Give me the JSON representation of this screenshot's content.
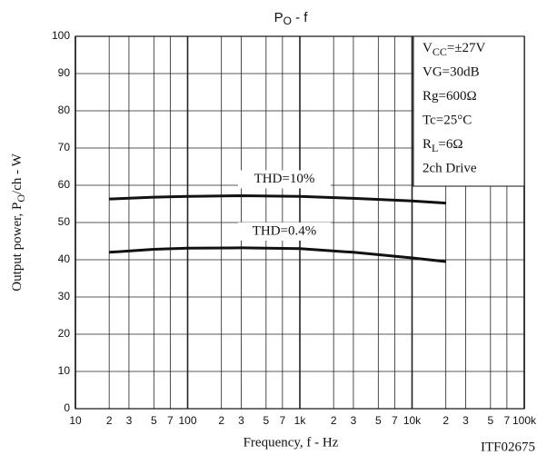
{
  "chart_data": {
    "type": "line",
    "title": {
      "text": "P",
      "sub": "O",
      "rest": " - f"
    },
    "x_label": "Frequency, f - Hz",
    "y_label": {
      "text": "Output power, P",
      "sub": "O",
      "rest": "/ch - W"
    },
    "code": "ITF02675",
    "log_x": true,
    "grid": true,
    "xlim": [
      10,
      100000
    ],
    "ylim": [
      0,
      100
    ],
    "yticks": [
      0,
      10,
      20,
      30,
      40,
      50,
      60,
      70,
      80,
      90,
      100
    ],
    "xticks": [
      10,
      {
        "value": 20,
        "label": "2"
      },
      {
        "value": 30,
        "label": "3"
      },
      {
        "value": 50,
        "label": "5"
      },
      {
        "value": 70,
        "label": "7"
      },
      100,
      {
        "value": 200,
        "label": "2"
      },
      {
        "value": 300,
        "label": "3"
      },
      {
        "value": 500,
        "label": "5"
      },
      {
        "value": 700,
        "label": "7"
      },
      {
        "value": 1000,
        "label": "1k"
      },
      {
        "value": 2000,
        "label": "2"
      },
      {
        "value": 3000,
        "label": "3"
      },
      {
        "value": 5000,
        "label": "5"
      },
      {
        "value": 7000,
        "label": "7"
      },
      {
        "value": 10000,
        "label": "10k"
      },
      {
        "value": 20000,
        "label": "2"
      },
      {
        "value": 30000,
        "label": "3"
      },
      {
        "value": 50000,
        "label": "5"
      },
      {
        "value": 70000,
        "label": "7"
      },
      {
        "value": 100000,
        "label": "100k"
      }
    ],
    "x": [
      20,
      50,
      100,
      300,
      1000,
      3000,
      10000,
      20000
    ],
    "series": [
      {
        "name": "THD=10%",
        "color": "#111111",
        "values": [
          56.3,
          56.8,
          57,
          57.2,
          57,
          56.5,
          55.8,
          55.2
        ]
      },
      {
        "name": "THD=0.4%",
        "color": "#111111",
        "values": [
          42,
          42.8,
          43.1,
          43.2,
          43,
          42,
          40.5,
          39.5
        ]
      }
    ],
    "conditions": [
      {
        "text": "V",
        "sub": "CC",
        "rest": "=±27V"
      },
      {
        "text": "VG=30dB"
      },
      {
        "text": "Rg=600Ω"
      },
      {
        "text": "Tc=25°C"
      },
      {
        "text": "R",
        "sub": "L",
        "rest": "=6Ω"
      },
      {
        "text": "2ch Drive"
      }
    ]
  }
}
